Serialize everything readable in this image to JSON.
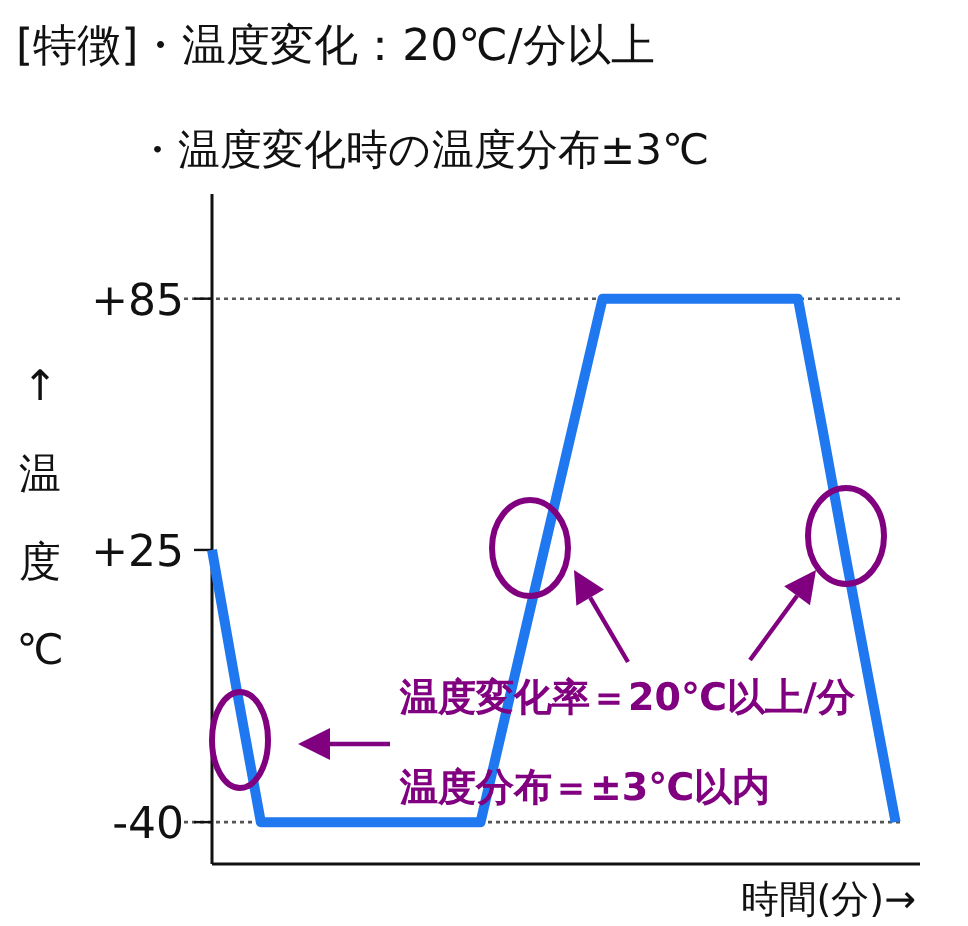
{
  "chart_data": {
    "type": "line",
    "title": "[特徴]・温度変化：20℃/分以上",
    "subtitle": "・温度変化時の温度分布±3℃",
    "xlabel": "時間(分)→",
    "ylabel": "↑温度℃",
    "categories": [
      null,
      null,
      null,
      null,
      null,
      null,
      null,
      null,
      null,
      null,
      null,
      null,
      null,
      null,
      null,
      null,
      null,
      null,
      null,
      null,
      null,
      null,
      null,
      null,
      null,
      null,
      null,
      null,
      null
    ],
    "series": [
      {
        "color": "#1f78f0",
        "values": [
          25,
          -8,
          -40,
          -40,
          -40,
          -40,
          -40,
          -40,
          -40,
          -40,
          -40,
          -40,
          -15,
          10,
          35,
          60,
          85,
          85,
          85,
          85,
          85,
          85,
          85,
          85,
          85,
          54,
          22,
          -9,
          -40
        ]
      }
    ],
    "ylim": [
      -50,
      110
    ],
    "yticks": [
      {
        "value": 85,
        "label": "+85"
      },
      {
        "value": 25,
        "label": "+25"
      },
      {
        "value": -40,
        "label": "-40"
      }
    ],
    "ref_lines": [
      {
        "axis": "y",
        "value": 85,
        "color": "#555555",
        "line_style": "dotted"
      },
      {
        "axis": "y",
        "value": -40,
        "color": "#555555",
        "line_style": "dotted"
      }
    ],
    "annotations": [
      "温度変化率＝20℃以上/分",
      "温度分布＝±3℃以内"
    ]
  }
}
